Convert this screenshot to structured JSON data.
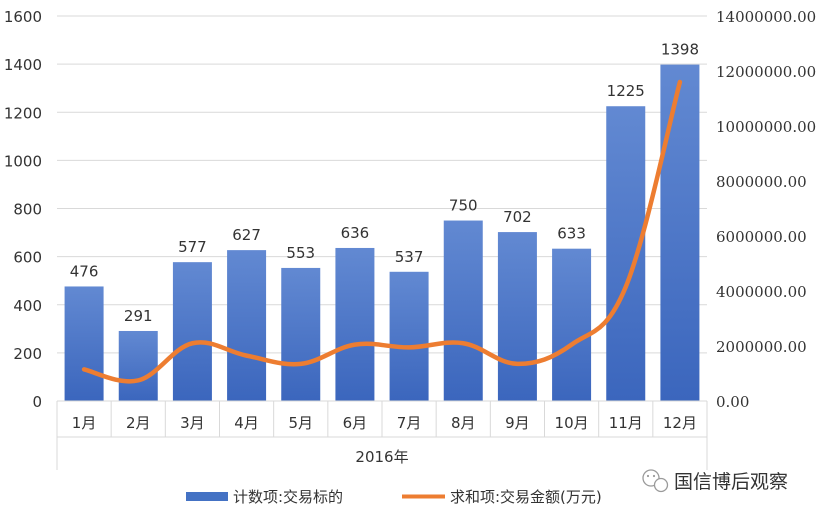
{
  "chart_data": {
    "type": "bar",
    "categories": [
      "1月",
      "2月",
      "3月",
      "4月",
      "5月",
      "6月",
      "7月",
      "8月",
      "9月",
      "10月",
      "11月",
      "12月"
    ],
    "group_label": "2016年",
    "series": [
      {
        "name": "计数项:交易标的",
        "type": "bar",
        "axis": "left",
        "color": "#4472C4",
        "values": [
          476,
          291,
          577,
          627,
          553,
          636,
          537,
          750,
          702,
          633,
          1225,
          1398
        ],
        "data_labels": [
          "476",
          "291",
          "577",
          "627",
          "553",
          "636",
          "537",
          "750",
          "702",
          "633",
          "1225",
          "1398"
        ]
      },
      {
        "name": "求和项:交易金额(万元)",
        "type": "line",
        "axis": "right",
        "color": "#ED7D31",
        "values": [
          1150000,
          750000,
          2100000,
          1650000,
          1350000,
          2050000,
          1950000,
          2100000,
          1350000,
          2050000,
          4150000,
          11600000
        ]
      }
    ],
    "y_left": {
      "min": 0,
      "max": 1600,
      "ticks": [
        "0",
        "200",
        "400",
        "600",
        "800",
        "1000",
        "1200",
        "1400",
        "1600"
      ]
    },
    "y_right": {
      "min": 0,
      "max": 14000000,
      "ticks": [
        "0.00",
        "2000000.00",
        "4000000.00",
        "6000000.00",
        "8000000.00",
        "10000000.00",
        "12000000.00",
        "14000000.00"
      ]
    },
    "grid": true,
    "legend_position": "bottom"
  },
  "watermark": {
    "text": "国信博后观察",
    "icon": "wechat-icon"
  }
}
